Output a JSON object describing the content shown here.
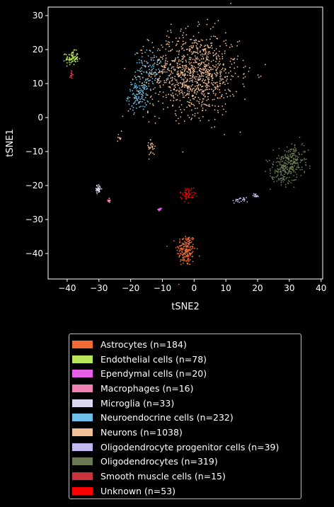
{
  "chart_data": {
    "type": "scatter",
    "xlabel": "tSNE2",
    "ylabel": "tSNE1",
    "xlim": [
      -46,
      40.5
    ],
    "ylim": [
      -47.5,
      32.5
    ],
    "xticks": [
      -40,
      -30,
      -20,
      -10,
      0,
      10,
      20,
      30,
      40
    ],
    "yticks": [
      -40,
      -30,
      -20,
      -10,
      0,
      10,
      20,
      30
    ],
    "background": "#000000",
    "legend_position": "below",
    "series": [
      {
        "name": "Astrocytes (n=184)",
        "color": "#f26b35",
        "clusters": [
          {
            "cx": -2.5,
            "cy": -39,
            "sx": 1.5,
            "sy": 2.4,
            "n": 184
          }
        ]
      },
      {
        "name": "Endothelial cells (n=78)",
        "color": "#b7e65a",
        "clusters": [
          {
            "cx": -38.5,
            "cy": 17.5,
            "sx": 1.0,
            "sy": 1.0,
            "n": 78
          }
        ]
      },
      {
        "name": "Ependymal cells (n=20)",
        "color": "#e65fe6",
        "clusters": [
          {
            "cx": -10.8,
            "cy": -27,
            "sx": 0.3,
            "sy": 0.3,
            "n": 20
          }
        ]
      },
      {
        "name": "Macrophages (n=16)",
        "color": "#ee82b5",
        "clusters": [
          {
            "cx": -26.7,
            "cy": -24.5,
            "sx": 0.2,
            "sy": 0.4,
            "n": 16
          }
        ]
      },
      {
        "name": "Microglia (n=33)",
        "color": "#dcd6f0",
        "clusters": [
          {
            "cx": -30.2,
            "cy": -21,
            "sx": 0.5,
            "sy": 0.6,
            "n": 33
          }
        ]
      },
      {
        "name": "Neuroendocrine cells (n=232)",
        "color": "#6cbfe8",
        "clusters": [
          {
            "cx": -17.5,
            "cy": 6.5,
            "sx": 1.6,
            "sy": 2.2,
            "n": 130
          },
          {
            "cx": -13.5,
            "cy": 14,
            "sx": 2.8,
            "sy": 2.8,
            "n": 102
          }
        ]
      },
      {
        "name": "Neurons (n=1038)",
        "color": "#f2bf96",
        "clusters": [
          {
            "cx": 0,
            "cy": 13,
            "sx": 7,
            "sy": 6,
            "n": 1000
          },
          {
            "cx": -23.5,
            "cy": -6.5,
            "sx": 0.4,
            "sy": 1.0,
            "n": 10
          },
          {
            "cx": -13.5,
            "cy": -8.5,
            "sx": 0.6,
            "sy": 1.4,
            "n": 28
          }
        ]
      },
      {
        "name": "Oligodendrocyte progenitor cells (n=39)",
        "color": "#c2b8ee",
        "clusters": [
          {
            "cx": 14.5,
            "cy": -24.3,
            "sx": 1.2,
            "sy": 0.4,
            "n": 24
          },
          {
            "cx": 19.5,
            "cy": -23,
            "sx": 0.5,
            "sy": 0.4,
            "n": 15
          }
        ]
      },
      {
        "name": "Oligodendrocytes (n=319)",
        "color": "#6b7a52",
        "clusters": [
          {
            "cx": 29.5,
            "cy": -14,
            "sx": 3,
            "sy": 2.2,
            "n": 319,
            "rot": 0.85
          }
        ]
      },
      {
        "name": "Smooth muscle cells (n=15)",
        "color": "#c8333c",
        "clusters": [
          {
            "cx": -38.5,
            "cy": 12.5,
            "sx": 0.3,
            "sy": 0.8,
            "n": 15
          }
        ]
      },
      {
        "name": "Unknown (n=53)",
        "color": "#ff0000",
        "clusters": [
          {
            "cx": -2,
            "cy": -22.5,
            "sx": 1.2,
            "sy": 0.9,
            "n": 53
          }
        ]
      }
    ]
  }
}
